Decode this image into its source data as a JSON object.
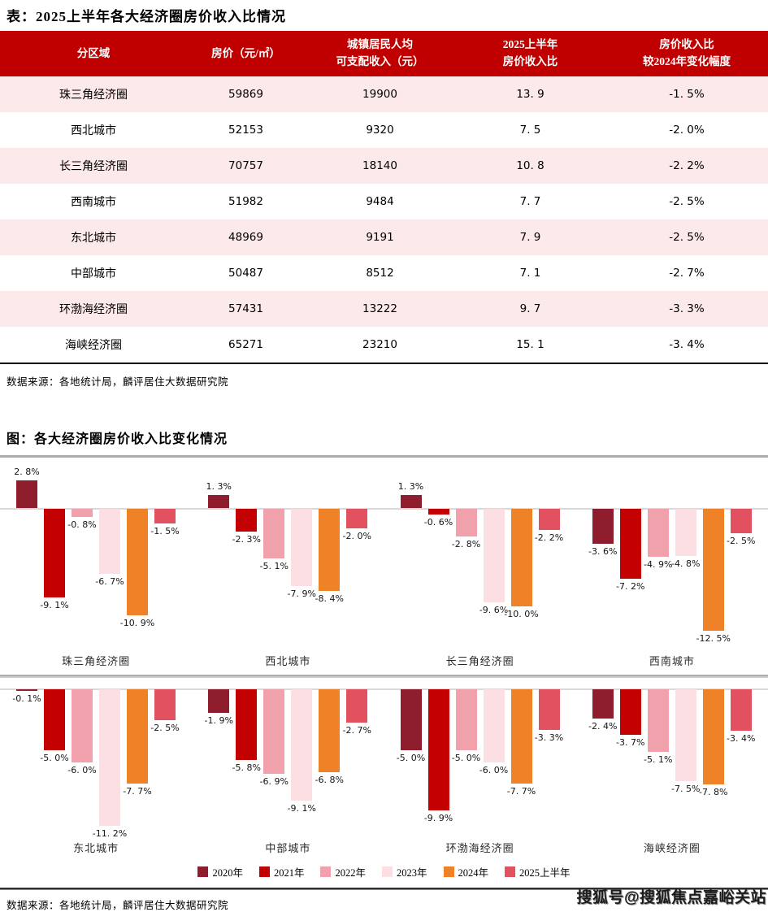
{
  "table_section": {
    "title": "表：2025上半年各大经济圈房价收入比情况",
    "source": "数据来源：各地统计局，麟评居住大数据研究院",
    "header": {
      "region": "分区域",
      "price": "房价（元/㎡）",
      "income_line1": "城镇居民人均",
      "income_line2": "可支配收入（元）",
      "ratio_line1": "2025上半年",
      "ratio_line2": "房价收入比",
      "change_line1": "房价收入比",
      "change_line2": "较2024年变化幅度"
    },
    "rows": [
      {
        "region": "珠三角经济圈",
        "price": "59869",
        "income": "19900",
        "ratio": "13. 9",
        "change": "-1. 5%"
      },
      {
        "region": "西北城市",
        "price": "52153",
        "income": "9320",
        "ratio": "7. 5",
        "change": "-2. 0%"
      },
      {
        "region": "长三角经济圈",
        "price": "70757",
        "income": "18140",
        "ratio": "10. 8",
        "change": "-2. 2%"
      },
      {
        "region": "西南城市",
        "price": "51982",
        "income": "9484",
        "ratio": "7. 7",
        "change": "-2. 5%"
      },
      {
        "region": "东北城市",
        "price": "48969",
        "income": "9191",
        "ratio": "7. 9",
        "change": "-2. 5%"
      },
      {
        "region": "中部城市",
        "price": "50487",
        "income": "8512",
        "ratio": "7. 1",
        "change": "-2. 7%"
      },
      {
        "region": "环渤海经济圈",
        "price": "57431",
        "income": "13222",
        "ratio": "9. 7",
        "change": "-3. 3%"
      },
      {
        "region": "海峡经济圈",
        "price": "65271",
        "income": "23210",
        "ratio": "15. 1",
        "change": "-3. 4%"
      }
    ]
  },
  "chart_section": {
    "title": "图：各大经济圈房价收入比变化情况",
    "source": "数据来源：各地统计局，麟评居住大数据研究院"
  },
  "chart_data": {
    "type": "bar",
    "title": "各大经济圈房价收入比变化情况",
    "unit": "%",
    "legend_position": "bottom",
    "series_labels": [
      "2020年",
      "2021年",
      "2022年",
      "2023年",
      "2024年",
      "2025上半年"
    ],
    "series_colors": [
      "#8E1D2E",
      "#C30101",
      "#F0A1AC",
      "#FBDFE3",
      "#EF8226",
      "#E25160"
    ],
    "groups": [
      {
        "name": "珠三角经济圈",
        "values": [
          2.8,
          -9.1,
          -0.8,
          -6.7,
          -10.9,
          -1.5
        ],
        "labels": [
          "2. 8%",
          "-9. 1%",
          "-0. 8%",
          "-6. 7%",
          "-10. 9%",
          "-1. 5%"
        ]
      },
      {
        "name": "西北城市",
        "values": [
          1.3,
          -2.3,
          -5.1,
          -7.9,
          -8.4,
          -2.0
        ],
        "labels": [
          "1. 3%",
          "-2. 3%",
          "-5. 1%",
          "-7. 9%",
          "-8. 4%",
          "-2. 0%"
        ]
      },
      {
        "name": "长三角经济圈",
        "values": [
          1.3,
          -0.6,
          -2.8,
          -9.6,
          -10.0,
          -2.2
        ],
        "labels": [
          "1. 3%",
          "-0. 6%",
          "-2. 8%",
          "-9. 6%",
          "-10. 0%",
          "-2. 2%"
        ]
      },
      {
        "name": "西南城市",
        "values": [
          -3.6,
          -7.2,
          -4.9,
          -4.8,
          -12.5,
          -2.5
        ],
        "labels": [
          "-3. 6%",
          "-7. 2%",
          "-4. 9%",
          "-4. 8%",
          "-12. 5%",
          "-2. 5%"
        ]
      },
      {
        "name": "东北城市",
        "values": [
          -0.1,
          -5.0,
          -6.0,
          -11.2,
          -7.7,
          -2.5
        ],
        "labels": [
          "-0. 1%",
          "-5. 0%",
          "-6. 0%",
          "-11. 2%",
          "-7. 7%",
          "-2. 5%"
        ]
      },
      {
        "name": "中部城市",
        "values": [
          -1.9,
          -5.8,
          -6.9,
          -9.1,
          -6.8,
          -2.7
        ],
        "labels": [
          "-1. 9%",
          "-5. 8%",
          "-6. 9%",
          "-9. 1%",
          "-6. 8%",
          "-2. 7%"
        ]
      },
      {
        "name": "环渤海经济圈",
        "values": [
          -5.0,
          -9.9,
          -5.0,
          -6.0,
          -7.7,
          -3.3
        ],
        "labels": [
          "-5. 0%",
          "-9. 9%",
          "-5. 0%",
          "-6. 0%",
          "-7. 7%",
          "-3. 3%"
        ]
      },
      {
        "name": "海峡经济圈",
        "values": [
          -2.4,
          -3.7,
          -5.1,
          -7.5,
          -7.8,
          -3.4
        ],
        "labels": [
          "-2. 4%",
          "-3. 7%",
          "-5. 1%",
          "-7. 5%",
          "-7. 8%",
          "-3. 4%"
        ]
      }
    ],
    "rows": [
      [
        0,
        1,
        2,
        3
      ],
      [
        4,
        5,
        6,
        7
      ]
    ]
  },
  "watermark": "搜狐号@搜狐焦点嘉峪关站",
  "colors": {
    "header_bg": "#C00000",
    "row_alt_bg": "#FCE9E9",
    "zero_line": "#D9D9D9"
  }
}
